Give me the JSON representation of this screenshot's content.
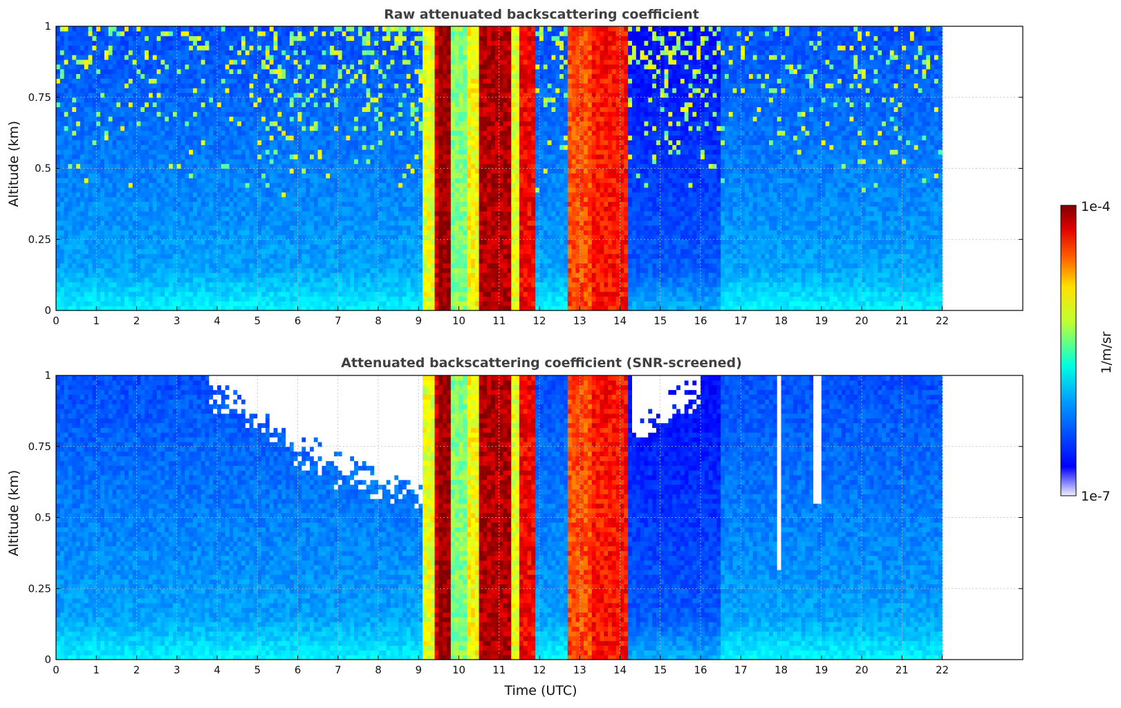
{
  "chart_data": [
    {
      "type": "heatmap",
      "title": "Raw attenuated backscattering coefficient",
      "xlabel": "",
      "ylabel": "Altitude (km)",
      "xlim": [
        0,
        24
      ],
      "ylim": [
        0,
        1
      ],
      "xticks": [
        "0",
        "1",
        "2",
        "3",
        "4",
        "5",
        "6",
        "7",
        "8",
        "9",
        "10",
        "11",
        "12",
        "13",
        "14",
        "15",
        "16",
        "17",
        "18",
        "19",
        "20",
        "21",
        "22"
      ],
      "yticks": [
        "0",
        "0.25",
        "0.5",
        "0.75",
        "1"
      ],
      "data_time_range_utc": [
        0,
        22
      ],
      "grid": true,
      "screened": false
    },
    {
      "type": "heatmap",
      "title": "Attenuated backscattering coefficient (SNR-screened)",
      "xlabel": "Time (UTC)",
      "ylabel": "Altitude (km)",
      "xlim": [
        0,
        24
      ],
      "ylim": [
        0,
        1
      ],
      "xticks": [
        "0",
        "1",
        "2",
        "3",
        "4",
        "5",
        "6",
        "7",
        "8",
        "9",
        "10",
        "11",
        "12",
        "13",
        "14",
        "15",
        "16",
        "17",
        "18",
        "19",
        "20",
        "21",
        "22"
      ],
      "yticks": [
        "0",
        "0.25",
        "0.5",
        "0.75",
        "1"
      ],
      "data_time_range_utc": [
        0,
        22
      ],
      "grid": true,
      "screened": true
    }
  ],
  "colorbar": {
    "label": "1/m/sr",
    "max_label": "1e-4",
    "min_label": "1e-7",
    "colormap": "jet",
    "scale": "log"
  },
  "cloud_bands_utc": [
    {
      "start": 9.15,
      "end": 9.4,
      "intensity": 0.6
    },
    {
      "start": 9.4,
      "end": 9.55,
      "intensity": 0.92
    },
    {
      "start": 9.55,
      "end": 9.8,
      "intensity": 0.98
    },
    {
      "start": 9.8,
      "end": 10.2,
      "intensity": 0.5
    },
    {
      "start": 10.2,
      "end": 10.5,
      "intensity": 0.62
    },
    {
      "start": 10.55,
      "end": 11.3,
      "intensity": 0.95
    },
    {
      "start": 11.3,
      "end": 11.55,
      "intensity": 0.6
    },
    {
      "start": 11.55,
      "end": 11.95,
      "intensity": 0.88
    },
    {
      "start": 12.7,
      "end": 13.35,
      "intensity": 0.8
    },
    {
      "start": 13.35,
      "end": 14.2,
      "intensity": 0.86
    }
  ]
}
